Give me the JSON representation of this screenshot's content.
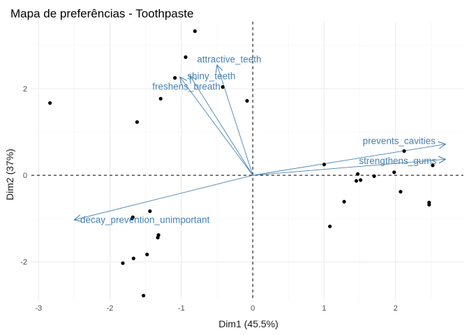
{
  "chart_data": {
    "type": "scatter",
    "title": "Mapa de preferências - Toothpaste",
    "xlabel": "Dim1 (45.5%)",
    "ylabel": "Dim2 (37%)",
    "xlim": [
      -3.1,
      2.95
    ],
    "ylim": [
      -2.9,
      3.55
    ],
    "xticks": [
      -3,
      -2,
      -1,
      0,
      1,
      2
    ],
    "yticks": [
      -2,
      0,
      2
    ],
    "grid": true,
    "reference_lines": {
      "x": 0,
      "y": 0,
      "style": "dashed"
    },
    "colors": {
      "points": "#000000",
      "arrows": "#4682B4",
      "grid_major": "#ebebeb",
      "grid_minor": "#f4f4f4",
      "reference": "#000000"
    },
    "points": [
      {
        "x": -0.81,
        "y": 3.33
      },
      {
        "x": -0.94,
        "y": 2.73
      },
      {
        "x": -1.09,
        "y": 2.25
      },
      {
        "x": -0.42,
        "y": 2.04
      },
      {
        "x": -1.29,
        "y": 1.77
      },
      {
        "x": -0.08,
        "y": 1.72
      },
      {
        "x": -2.84,
        "y": 1.67
      },
      {
        "x": -1.62,
        "y": 1.23
      },
      {
        "x": -1.44,
        "y": -0.83
      },
      {
        "x": -1.68,
        "y": -0.97
      },
      {
        "x": -1.69,
        "y": -1.0
      },
      {
        "x": -1.32,
        "y": -1.38
      },
      {
        "x": -1.33,
        "y": -1.44
      },
      {
        "x": -1.48,
        "y": -1.83
      },
      {
        "x": -1.67,
        "y": -1.92
      },
      {
        "x": -1.82,
        "y": -2.03
      },
      {
        "x": -1.53,
        "y": -2.78
      },
      {
        "x": 1.0,
        "y": 0.25
      },
      {
        "x": 1.47,
        "y": 0.03
      },
      {
        "x": 1.45,
        "y": -0.13
      },
      {
        "x": 1.51,
        "y": -0.11
      },
      {
        "x": 1.7,
        "y": -0.02
      },
      {
        "x": 1.98,
        "y": 0.07
      },
      {
        "x": 2.12,
        "y": 0.56
      },
      {
        "x": 2.52,
        "y": 0.23
      },
      {
        "x": 2.07,
        "y": -0.38
      },
      {
        "x": 1.28,
        "y": -0.61
      },
      {
        "x": 2.47,
        "y": -0.63
      },
      {
        "x": 2.47,
        "y": -0.68
      },
      {
        "x": 1.08,
        "y": -1.18
      }
    ],
    "vectors": [
      {
        "label": "attractive_teeth",
        "x": -0.5,
        "y": 2.55,
        "label_x": -0.33,
        "label_y": 2.68
      },
      {
        "label": "shiny_teeth",
        "x": -0.88,
        "y": 2.3,
        "label_x": -0.58,
        "label_y": 2.29
      },
      {
        "label": "freshens_breath",
        "x": -1.02,
        "y": 2.27,
        "label_x": -0.93,
        "label_y": 2.05
      },
      {
        "label": "prevents_cavities",
        "x": 2.7,
        "y": 0.72,
        "label_x": 2.05,
        "label_y": 0.79
      },
      {
        "label": "strengthens_gums",
        "x": 2.7,
        "y": 0.37,
        "label_x": 2.03,
        "label_y": 0.33
      },
      {
        "label": "decay_prevention_unimportant",
        "x": -2.5,
        "y": -1.03,
        "label_x": -1.51,
        "label_y": -1.03
      }
    ]
  }
}
